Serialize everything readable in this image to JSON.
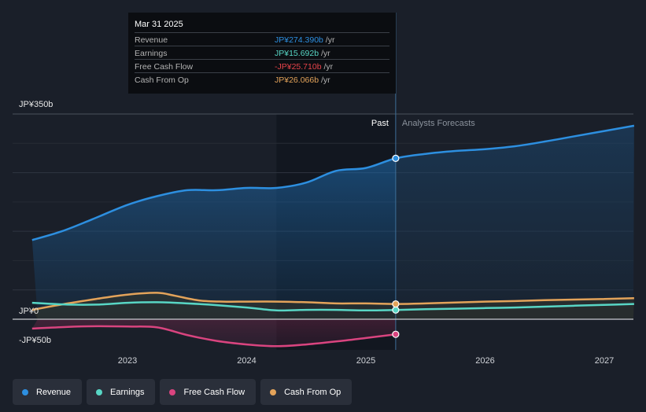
{
  "chart_data": {
    "type": "area",
    "y_tick_labels": [
      "JP¥350b",
      "JP¥0",
      "-JP¥50b"
    ],
    "ylim": [
      -50,
      350
    ],
    "xlim": [
      2022.2,
      2027.25
    ],
    "x_tick_labels": [
      "2023",
      "2024",
      "2025",
      "2026",
      "2027"
    ],
    "x_ticks": [
      2023,
      2024,
      2025,
      2026,
      2027
    ],
    "forecast_start": 2025.25,
    "highlight_start": 2024.25,
    "section_labels": {
      "past": "Past",
      "forecast": "Analysts Forecasts"
    },
    "series": [
      {
        "name": "Revenue",
        "color": "#2d8fe0",
        "x": [
          2022.2,
          2022.45,
          2022.7,
          2023.0,
          2023.25,
          2023.5,
          2023.75,
          2024.0,
          2024.25,
          2024.5,
          2024.75,
          2025.0,
          2025.25,
          2025.5,
          2025.75,
          2026.0,
          2026.25,
          2026.5,
          2026.75,
          2027.0,
          2027.25
        ],
        "values": [
          135,
          150,
          170,
          195,
          210,
          220,
          220,
          224,
          224,
          233,
          253,
          258,
          274.39,
          282,
          287,
          290,
          295,
          303,
          312,
          321,
          330
        ]
      },
      {
        "name": "Earnings",
        "color": "#58d6c5",
        "x": [
          2022.2,
          2022.5,
          2022.75,
          2023.0,
          2023.25,
          2023.5,
          2023.75,
          2024.0,
          2024.25,
          2024.5,
          2024.75,
          2025.0,
          2025.25,
          2025.5,
          2025.75,
          2026.0,
          2026.25,
          2026.5,
          2026.75,
          2027.0,
          2027.25
        ],
        "values": [
          28,
          25,
          25,
          28,
          29,
          27,
          24,
          20,
          15,
          16,
          16,
          15,
          15.692,
          17,
          18,
          19,
          20,
          21.5,
          23,
          24.5,
          26
        ]
      },
      {
        "name": "Free Cash Flow",
        "color": "#d9447f",
        "x": [
          2022.2,
          2022.5,
          2022.75,
          2023.0,
          2023.25,
          2023.5,
          2023.75,
          2024.0,
          2024.25,
          2024.5,
          2024.75,
          2025.0,
          2025.25
        ],
        "values": [
          -16,
          -13,
          -12,
          -12.5,
          -14,
          -27,
          -37,
          -43,
          -46,
          -43,
          -38,
          -32,
          -25.71
        ]
      },
      {
        "name": "Cash From Op",
        "color": "#e3a35a",
        "x": [
          2022.2,
          2022.5,
          2022.75,
          2023.0,
          2023.25,
          2023.4,
          2023.6,
          2023.8,
          2024.0,
          2024.25,
          2024.5,
          2024.75,
          2025.0,
          2025.25,
          2025.5,
          2025.75,
          2026.0,
          2026.25,
          2026.5,
          2026.75,
          2027.0,
          2027.25
        ],
        "values": [
          16,
          27,
          35,
          42,
          45,
          40,
          32,
          30,
          30,
          30,
          29,
          27,
          27,
          26.066,
          27,
          28.5,
          30,
          31,
          32.5,
          33.5,
          34.5,
          36
        ]
      }
    ]
  },
  "tooltip": {
    "date": "Mar 31 2025",
    "rows": [
      {
        "label": "Revenue",
        "value": "JP¥274.390b",
        "unit": " /yr",
        "color": "#2d8fe0"
      },
      {
        "label": "Earnings",
        "value": "JP¥15.692b",
        "unit": " /yr",
        "color": "#58d6c5"
      },
      {
        "label": "Free Cash Flow",
        "value": "-JP¥25.710b",
        "unit": " /yr",
        "color": "#e8434a"
      },
      {
        "label": "Cash From Op",
        "value": "JP¥26.066b",
        "unit": " /yr",
        "color": "#e3a35a"
      }
    ]
  },
  "legend": [
    {
      "label": "Revenue",
      "color": "#2d8fe0"
    },
    {
      "label": "Earnings",
      "color": "#58d6c5"
    },
    {
      "label": "Free Cash Flow",
      "color": "#d9447f"
    },
    {
      "label": "Cash From Op",
      "color": "#e3a35a"
    }
  ]
}
